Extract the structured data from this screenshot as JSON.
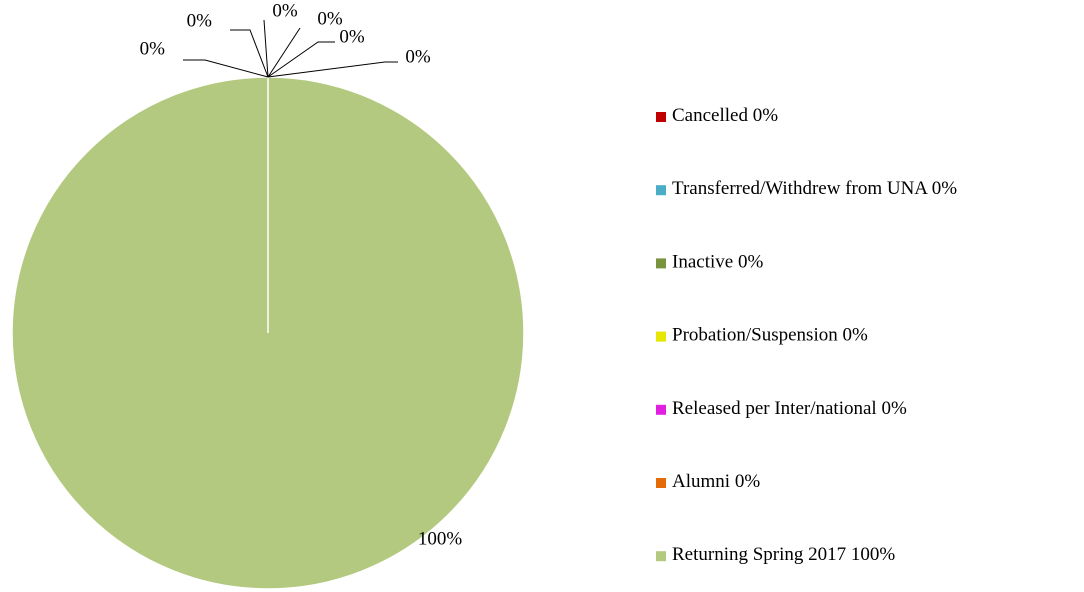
{
  "chart_data": {
    "type": "pie",
    "categories": [
      "Cancelled",
      "Transferred/Withdrew from UNA",
      "Inactive",
      "Probation/Suspension",
      "Released per Inter/national",
      "Alumni",
      "Returning Spring 2017"
    ],
    "values": [
      0,
      0,
      0,
      0,
      0,
      0,
      100
    ],
    "value_labels": [
      "0%",
      "0%",
      "0%",
      "0%",
      "0%",
      "0%",
      "100%"
    ],
    "colors": [
      "#c00000",
      "#4bacc6",
      "#77933c",
      "#e6e600",
      "#e020e0",
      "#e36c09",
      "#b3c97f"
    ],
    "legend": "right"
  }
}
